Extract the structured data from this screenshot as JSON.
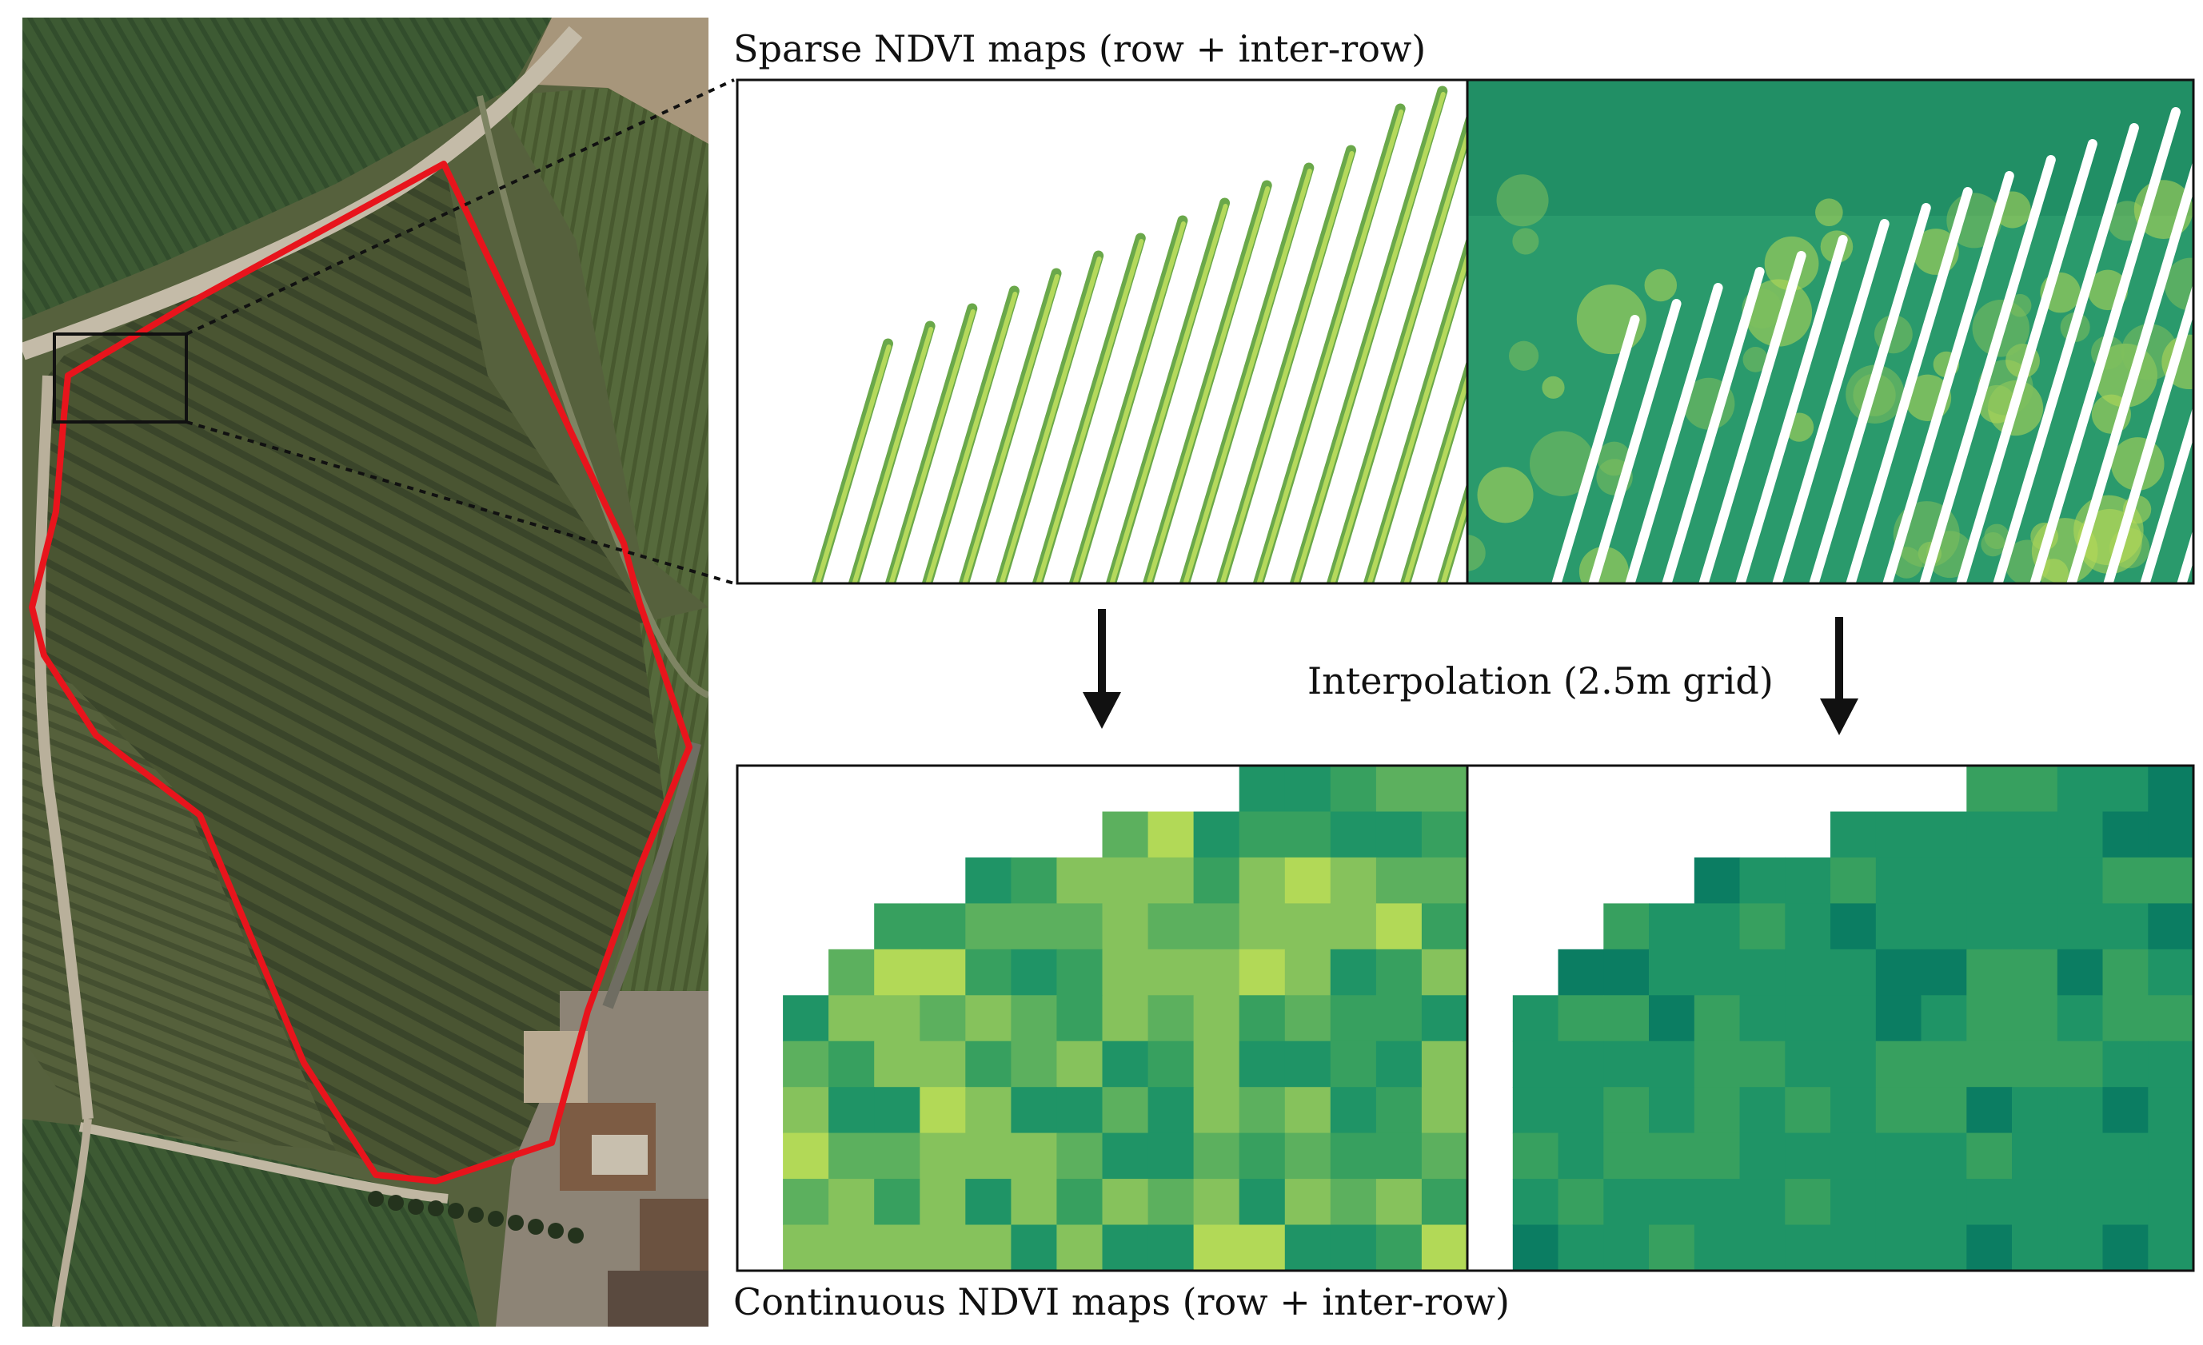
{
  "labels": {
    "sparse_title": "Sparse NDVI maps (row + inter-row)",
    "interpolation": "Interpolation (2.5m grid)",
    "continuous_title": "Continuous NDVI maps (row + inter-row)"
  },
  "aerial": {
    "boundary_color": "#e8141c",
    "zoom_box_color": "#111111"
  },
  "ndvi_palette": [
    "#0b7d62",
    "#1f9466",
    "#37a05f",
    "#5cb05e",
    "#86c25c",
    "#b2d957",
    "#d4e85d"
  ],
  "panels": {
    "sparse_row": "row-only NDVI raster",
    "sparse_interrow": "row + inter-row NDVI raster",
    "continuous_row": "interpolated row map",
    "continuous_interrow": "interpolated inter-row map"
  }
}
